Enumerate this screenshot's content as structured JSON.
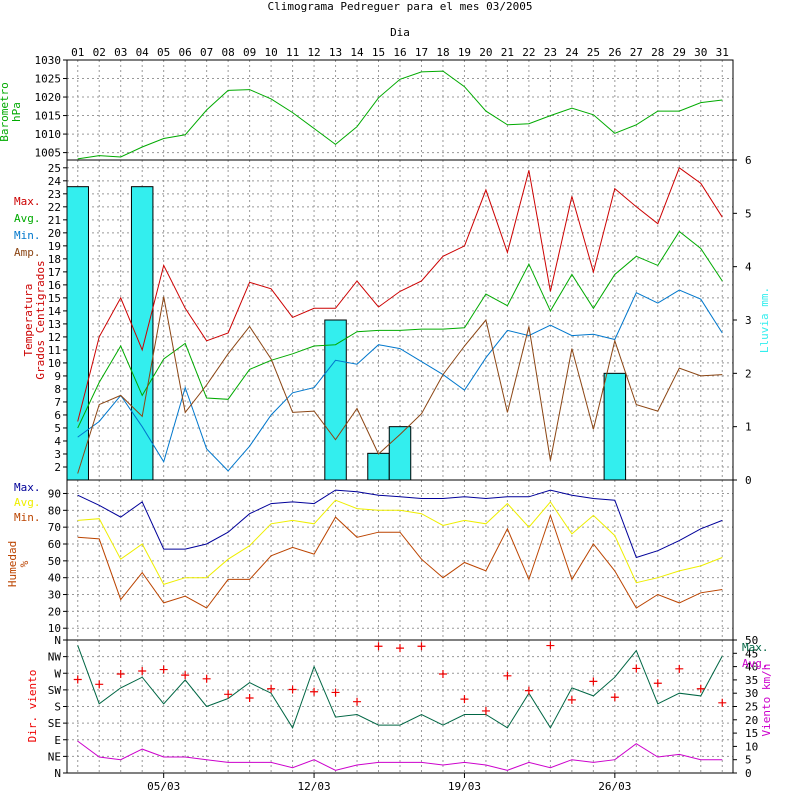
{
  "title": "Climograma Pedreguer para el mes 03/2005",
  "day_header": "Dia",
  "colors": {
    "max_temp": "#cc0000",
    "avg_temp": "#00aa00",
    "min_temp": "#0077cc",
    "amp_temp": "#8b4513",
    "rain": "#33eeee",
    "pressure": "#00aa00",
    "hum_max": "#000099",
    "hum_avg": "#eeee00",
    "hum_min": "#bb4400",
    "wind_max": "#006644",
    "wind_avg": "#cc00cc",
    "wind_dir": "#ee0000"
  },
  "chart_data": [
    {
      "type": "line",
      "panel": "pressure",
      "ylabel": "Barometro hPa",
      "x": [
        1,
        2,
        3,
        4,
        5,
        6,
        7,
        8,
        9,
        10,
        11,
        12,
        13,
        14,
        15,
        16,
        17,
        18,
        19,
        20,
        21,
        22,
        23,
        24,
        25,
        26,
        27,
        28,
        29,
        30,
        31
      ],
      "ylim": [
        1003,
        1030
      ],
      "ticks": [
        1005,
        1010,
        1015,
        1020,
        1025,
        1030
      ],
      "series": [
        {
          "values": [
            1003.3,
            1004.2,
            1003.8,
            1006.5,
            1008.8,
            1009.8,
            1016.5,
            1021.8,
            1022,
            1019.5,
            1015.8,
            1011.5,
            1007.2,
            1012,
            1019.8,
            1024.8,
            1026.8,
            1027,
            1022.8,
            1016.2,
            1012.5,
            1012.8,
            1015,
            1017,
            1015.2,
            1010.2,
            1012.5,
            1016.2,
            1016.2,
            1018.5,
            1019.2
          ]
        }
      ]
    },
    {
      "type": "line",
      "panel": "temperature",
      "ylabel": "Temperatura Grados Centigrados",
      "y2label": "Lluvia mm.",
      "ylim": [
        1,
        25.6
      ],
      "ticks": [
        2,
        3,
        4,
        5,
        6,
        7,
        8,
        9,
        10,
        11,
        12,
        13,
        14,
        15,
        16,
        17,
        18,
        19,
        20,
        21,
        22,
        23,
        24,
        25
      ],
      "y2lim": [
        0,
        6
      ],
      "ticks2": [
        0,
        1,
        2,
        3,
        4,
        5,
        6
      ],
      "legend": [
        "Max.",
        "Avg.",
        "Min.",
        "Amp."
      ],
      "x": [
        1,
        2,
        3,
        4,
        5,
        6,
        7,
        8,
        9,
        10,
        11,
        12,
        13,
        14,
        15,
        16,
        17,
        18,
        19,
        20,
        21,
        22,
        23,
        24,
        25,
        26,
        27,
        28,
        29,
        30,
        31
      ],
      "series": [
        {
          "name": "Max.",
          "values": [
            5.5,
            12,
            15,
            11,
            17.5,
            14.2,
            11.7,
            12.3,
            16.2,
            15.7,
            13.5,
            14.2,
            14.2,
            16.3,
            14.3,
            15.5,
            16.3,
            18.2,
            19,
            23.3,
            18.5,
            24.8,
            15.5,
            22.8,
            17,
            23.4,
            22,
            20.7,
            25,
            23.8,
            21.2
          ]
        },
        {
          "name": "Avg.",
          "values": [
            5,
            8.5,
            11.3,
            7.5,
            10.3,
            11.5,
            7.3,
            7.2,
            9.5,
            10.2,
            10.7,
            11.3,
            11.4,
            12.4,
            12.5,
            12.5,
            12.6,
            12.6,
            12.7,
            15.3,
            14.4,
            17.6,
            14,
            16.8,
            14.2,
            16.8,
            18.2,
            17.5,
            20.1,
            18.8,
            16.3
          ]
        },
        {
          "name": "Min.",
          "values": [
            4.3,
            5.5,
            7.5,
            5.1,
            2.4,
            8.1,
            3.4,
            1.7,
            3.6,
            6,
            7.7,
            8.1,
            10.2,
            9.9,
            11.4,
            11.1,
            10.1,
            9.1,
            7.9,
            10.4,
            12.5,
            12.1,
            12.9,
            12.1,
            12.2,
            11.8,
            15.4,
            14.6,
            15.6,
            14.9,
            12.3
          ]
        },
        {
          "name": "Amp.",
          "values": [
            1.5,
            6.8,
            7.5,
            5.9,
            15.1,
            6.2,
            8.3,
            10.7,
            12.8,
            10.3,
            6.2,
            6.3,
            4.1,
            6.5,
            3,
            4.5,
            6.1,
            9.1,
            11.3,
            13.3,
            6.2,
            12.8,
            2.5,
            11.1,
            4.9,
            11.7,
            6.8,
            6.3,
            9.6,
            9,
            9.1
          ]
        }
      ],
      "rain": {
        "name": "Lluvia mm.",
        "x": [
          1,
          4,
          13,
          15,
          16,
          26
        ],
        "values": [
          5.5,
          5.5,
          3,
          0.5,
          1,
          2
        ]
      }
    },
    {
      "type": "line",
      "panel": "humidity",
      "ylabel": "Humedad %",
      "ylim": [
        3,
        98
      ],
      "ticks": [
        10,
        20,
        30,
        40,
        50,
        60,
        70,
        80,
        90
      ],
      "legend": [
        "Max.",
        "Avg.",
        "Min."
      ],
      "x": [
        1,
        2,
        3,
        4,
        5,
        6,
        7,
        8,
        9,
        10,
        11,
        12,
        13,
        14,
        15,
        16,
        17,
        18,
        19,
        20,
        21,
        22,
        23,
        24,
        25,
        26,
        27,
        28,
        29,
        30,
        31
      ],
      "series": [
        {
          "name": "Max.",
          "values": [
            89,
            83,
            76,
            85,
            57,
            57,
            60,
            67,
            78,
            84,
            85,
            84,
            92,
            91,
            89,
            88,
            87,
            87,
            88,
            87,
            88,
            88,
            92,
            89,
            87,
            86,
            52,
            56,
            62,
            69,
            74
          ]
        },
        {
          "name": "Avg.",
          "values": [
            74,
            75,
            51,
            60,
            36,
            40,
            40,
            51,
            59,
            72,
            74,
            72,
            86,
            81,
            80,
            80,
            78,
            71,
            74,
            72,
            84,
            70,
            85,
            66,
            77,
            65,
            37,
            40,
            44,
            47,
            52
          ]
        },
        {
          "name": "Min.",
          "values": [
            64,
            63,
            27,
            43,
            25,
            29,
            22,
            39,
            39,
            53,
            58,
            54,
            76,
            64,
            67,
            67,
            51,
            40,
            49,
            44,
            69,
            39,
            77,
            39,
            60,
            44,
            22,
            30,
            25,
            31,
            33
          ]
        }
      ]
    },
    {
      "type": "line",
      "panel": "wind",
      "ylabel": "Dir. viento",
      "y2label": "Viento km/h",
      "dir_labels": [
        "N",
        "NE",
        "E",
        "SE",
        "S",
        "SW",
        "W",
        "NW",
        "N"
      ],
      "y2lim": [
        0,
        50
      ],
      "ticks2": [
        0,
        5,
        10,
        15,
        20,
        25,
        30,
        35,
        40,
        45,
        50
      ],
      "legend": [
        "Max.",
        "Avg."
      ],
      "x": [
        1,
        2,
        3,
        4,
        5,
        6,
        7,
        8,
        9,
        10,
        11,
        12,
        13,
        14,
        15,
        16,
        17,
        18,
        19,
        20,
        21,
        22,
        23,
        24,
        25,
        26,
        27,
        28,
        29,
        30,
        31
      ],
      "series": [
        {
          "name": "Max.",
          "values": [
            48,
            26,
            32,
            36,
            26,
            35,
            25,
            28,
            34,
            30,
            17,
            40,
            21,
            22,
            18,
            18,
            22,
            18,
            22,
            22,
            17,
            30,
            17,
            32,
            29,
            36,
            46,
            26,
            30,
            29,
            44
          ]
        },
        {
          "name": "Avg.",
          "values": [
            12,
            6,
            5,
            9,
            6,
            6,
            5,
            4,
            4,
            4,
            2,
            5,
            1,
            3,
            4,
            4,
            4,
            3,
            4,
            3,
            1,
            4,
            2,
            5,
            4,
            5,
            11,
            6,
            7,
            5,
            5
          ]
        }
      ],
      "direction": {
        "name": "Dir. viento",
        "values": [
          253,
          240,
          268,
          276,
          280,
          265,
          255,
          213,
          203,
          228,
          226,
          220,
          218,
          193,
          343,
          338,
          343,
          268,
          200,
          168,
          263,
          223,
          345,
          198,
          248,
          205,
          283,
          243,
          282,
          228,
          190
        ]
      }
    }
  ],
  "x_ticks": [
    "01",
    "02",
    "03",
    "04",
    "05",
    "06",
    "07",
    "08",
    "09",
    "10",
    "11",
    "12",
    "13",
    "14",
    "15",
    "16",
    "17",
    "18",
    "19",
    "20",
    "21",
    "22",
    "23",
    "24",
    "25",
    "26",
    "27",
    "28",
    "29",
    "30",
    "31"
  ],
  "x_bottom_labels": [
    {
      "day": 5,
      "label": "05/03"
    },
    {
      "day": 12,
      "label": "12/03"
    },
    {
      "day": 19,
      "label": "19/03"
    },
    {
      "day": 26,
      "label": "26/03"
    }
  ]
}
